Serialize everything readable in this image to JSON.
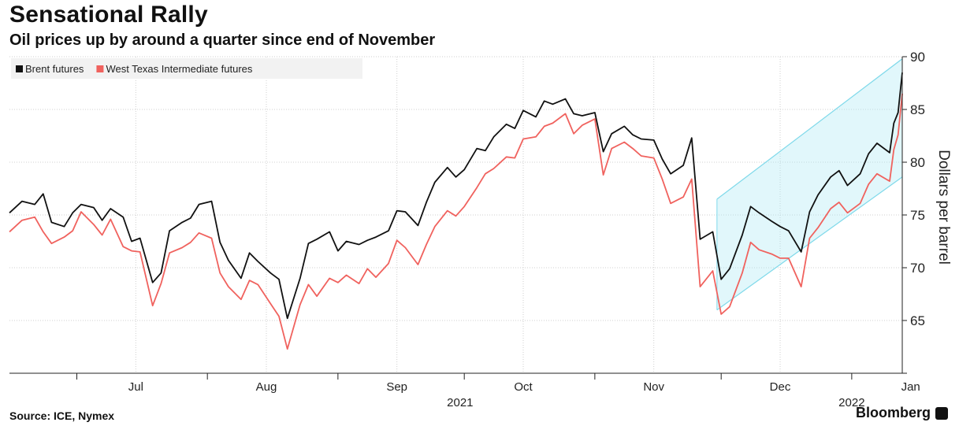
{
  "chart_data": {
    "type": "line",
    "title": "Sensational Rally",
    "subtitle": "Oil prices up by around a quarter since end of November",
    "ylabel": "Dollars per barrel",
    "ylim": [
      60,
      90
    ],
    "yticks": [
      65,
      70,
      75,
      80,
      85,
      90
    ],
    "xlim": [
      "2021-06-15",
      "2022-01-13"
    ],
    "month_ticks": [
      "2021-07-01",
      "2021-08-01",
      "2021-09-01",
      "2021-10-01",
      "2021-11-01",
      "2021-12-01",
      "2022-01-01"
    ],
    "month_labels": [
      "Jul",
      "Aug",
      "Sep",
      "Oct",
      "Nov",
      "Dec",
      "Jan"
    ],
    "year_labels": [
      {
        "text": "2021",
        "date": "2021-09-30"
      },
      {
        "text": "2022",
        "date": "2022-01-01"
      }
    ],
    "grid": true,
    "legend_position": "top-left",
    "series": [
      {
        "name": "Brent futures",
        "color": "#111111",
        "points": [
          [
            "2021-06-15",
            75.2
          ],
          [
            "2021-06-18",
            76.3
          ],
          [
            "2021-06-21",
            76.0
          ],
          [
            "2021-06-23",
            77.0
          ],
          [
            "2021-06-25",
            74.3
          ],
          [
            "2021-06-28",
            73.9
          ],
          [
            "2021-06-30",
            75.2
          ],
          [
            "2021-07-02",
            76.0
          ],
          [
            "2021-07-05",
            75.7
          ],
          [
            "2021-07-07",
            74.5
          ],
          [
            "2021-07-09",
            75.6
          ],
          [
            "2021-07-12",
            74.8
          ],
          [
            "2021-07-14",
            72.5
          ],
          [
            "2021-07-16",
            72.8
          ],
          [
            "2021-07-19",
            68.6
          ],
          [
            "2021-07-21",
            69.5
          ],
          [
            "2021-07-23",
            73.5
          ],
          [
            "2021-07-26",
            74.3
          ],
          [
            "2021-07-28",
            74.7
          ],
          [
            "2021-07-30",
            76.0
          ],
          [
            "2021-08-02",
            76.3
          ],
          [
            "2021-08-04",
            72.4
          ],
          [
            "2021-08-06",
            70.7
          ],
          [
            "2021-08-09",
            69.0
          ],
          [
            "2021-08-11",
            71.4
          ],
          [
            "2021-08-13",
            70.6
          ],
          [
            "2021-08-16",
            69.5
          ],
          [
            "2021-08-18",
            68.9
          ],
          [
            "2021-08-20",
            65.2
          ],
          [
            "2021-08-23",
            69.0
          ],
          [
            "2021-08-25",
            72.3
          ],
          [
            "2021-08-27",
            72.7
          ],
          [
            "2021-08-30",
            73.4
          ],
          [
            "2021-09-01",
            71.6
          ],
          [
            "2021-09-03",
            72.5
          ],
          [
            "2021-09-06",
            72.2
          ],
          [
            "2021-09-08",
            72.6
          ],
          [
            "2021-09-10",
            72.9
          ],
          [
            "2021-09-13",
            73.5
          ],
          [
            "2021-09-15",
            75.4
          ],
          [
            "2021-09-17",
            75.3
          ],
          [
            "2021-09-20",
            74.0
          ],
          [
            "2021-09-22",
            76.2
          ],
          [
            "2021-09-24",
            78.1
          ],
          [
            "2021-09-27",
            79.5
          ],
          [
            "2021-09-29",
            78.6
          ],
          [
            "2021-10-01",
            79.3
          ],
          [
            "2021-10-04",
            81.3
          ],
          [
            "2021-10-06",
            81.1
          ],
          [
            "2021-10-08",
            82.4
          ],
          [
            "2021-10-11",
            83.6
          ],
          [
            "2021-10-13",
            83.2
          ],
          [
            "2021-10-15",
            84.9
          ],
          [
            "2021-10-18",
            84.3
          ],
          [
            "2021-10-20",
            85.8
          ],
          [
            "2021-10-22",
            85.5
          ],
          [
            "2021-10-25",
            86.0
          ],
          [
            "2021-10-27",
            84.6
          ],
          [
            "2021-10-29",
            84.4
          ],
          [
            "2021-11-01",
            84.7
          ],
          [
            "2021-11-03",
            81.0
          ],
          [
            "2021-11-05",
            82.7
          ],
          [
            "2021-11-08",
            83.4
          ],
          [
            "2021-11-10",
            82.6
          ],
          [
            "2021-11-12",
            82.2
          ],
          [
            "2021-11-15",
            82.1
          ],
          [
            "2021-11-17",
            80.3
          ],
          [
            "2021-11-19",
            78.9
          ],
          [
            "2021-11-22",
            79.7
          ],
          [
            "2021-11-24",
            82.3
          ],
          [
            "2021-11-26",
            72.7
          ],
          [
            "2021-11-29",
            73.4
          ],
          [
            "2021-12-01",
            68.9
          ],
          [
            "2021-12-03",
            69.9
          ],
          [
            "2021-12-06",
            73.1
          ],
          [
            "2021-12-08",
            75.8
          ],
          [
            "2021-12-10",
            75.2
          ],
          [
            "2021-12-13",
            74.4
          ],
          [
            "2021-12-15",
            73.9
          ],
          [
            "2021-12-17",
            73.5
          ],
          [
            "2021-12-20",
            71.5
          ],
          [
            "2021-12-22",
            75.3
          ],
          [
            "2021-12-24",
            76.9
          ],
          [
            "2021-12-27",
            78.6
          ],
          [
            "2021-12-29",
            79.2
          ],
          [
            "2021-12-31",
            77.8
          ],
          [
            "2022-01-03",
            78.9
          ],
          [
            "2022-01-05",
            80.8
          ],
          [
            "2022-01-07",
            81.8
          ],
          [
            "2022-01-10",
            80.9
          ],
          [
            "2022-01-11",
            83.7
          ],
          [
            "2022-01-12",
            84.7
          ],
          [
            "2022-01-13",
            88.5
          ]
        ]
      },
      {
        "name": "West Texas Intermediate futures",
        "color": "#f0625e",
        "points": [
          [
            "2021-06-15",
            73.4
          ],
          [
            "2021-06-18",
            74.5
          ],
          [
            "2021-06-21",
            74.8
          ],
          [
            "2021-06-23",
            73.4
          ],
          [
            "2021-06-25",
            72.3
          ],
          [
            "2021-06-28",
            72.9
          ],
          [
            "2021-06-30",
            73.5
          ],
          [
            "2021-07-02",
            75.3
          ],
          [
            "2021-07-05",
            74.1
          ],
          [
            "2021-07-07",
            73.1
          ],
          [
            "2021-07-09",
            74.6
          ],
          [
            "2021-07-12",
            72.0
          ],
          [
            "2021-07-14",
            71.6
          ],
          [
            "2021-07-16",
            71.5
          ],
          [
            "2021-07-19",
            66.4
          ],
          [
            "2021-07-21",
            68.5
          ],
          [
            "2021-07-23",
            71.4
          ],
          [
            "2021-07-26",
            71.9
          ],
          [
            "2021-07-28",
            72.4
          ],
          [
            "2021-07-30",
            73.3
          ],
          [
            "2021-08-02",
            72.8
          ],
          [
            "2021-08-04",
            69.5
          ],
          [
            "2021-08-06",
            68.2
          ],
          [
            "2021-08-09",
            67.0
          ],
          [
            "2021-08-11",
            68.8
          ],
          [
            "2021-08-13",
            68.4
          ],
          [
            "2021-08-16",
            66.6
          ],
          [
            "2021-08-18",
            65.4
          ],
          [
            "2021-08-20",
            62.3
          ],
          [
            "2021-08-23",
            66.5
          ],
          [
            "2021-08-25",
            68.4
          ],
          [
            "2021-08-27",
            67.3
          ],
          [
            "2021-08-30",
            69.0
          ],
          [
            "2021-09-01",
            68.6
          ],
          [
            "2021-09-03",
            69.3
          ],
          [
            "2021-09-06",
            68.5
          ],
          [
            "2021-09-08",
            69.9
          ],
          [
            "2021-09-10",
            69.1
          ],
          [
            "2021-09-13",
            70.4
          ],
          [
            "2021-09-15",
            72.6
          ],
          [
            "2021-09-17",
            71.9
          ],
          [
            "2021-09-20",
            70.3
          ],
          [
            "2021-09-22",
            72.2
          ],
          [
            "2021-09-24",
            73.9
          ],
          [
            "2021-09-27",
            75.4
          ],
          [
            "2021-09-29",
            74.9
          ],
          [
            "2021-10-01",
            75.8
          ],
          [
            "2021-10-04",
            77.6
          ],
          [
            "2021-10-06",
            78.9
          ],
          [
            "2021-10-08",
            79.4
          ],
          [
            "2021-10-11",
            80.5
          ],
          [
            "2021-10-13",
            80.4
          ],
          [
            "2021-10-15",
            82.2
          ],
          [
            "2021-10-18",
            82.4
          ],
          [
            "2021-10-20",
            83.4
          ],
          [
            "2021-10-22",
            83.7
          ],
          [
            "2021-10-25",
            84.6
          ],
          [
            "2021-10-27",
            82.7
          ],
          [
            "2021-10-29",
            83.5
          ],
          [
            "2021-11-01",
            84.1
          ],
          [
            "2021-11-03",
            78.8
          ],
          [
            "2021-11-05",
            81.3
          ],
          [
            "2021-11-08",
            81.9
          ],
          [
            "2021-11-10",
            81.3
          ],
          [
            "2021-11-12",
            80.6
          ],
          [
            "2021-11-15",
            80.4
          ],
          [
            "2021-11-17",
            78.4
          ],
          [
            "2021-11-19",
            76.1
          ],
          [
            "2021-11-22",
            76.7
          ],
          [
            "2021-11-24",
            78.4
          ],
          [
            "2021-11-26",
            68.2
          ],
          [
            "2021-11-29",
            69.7
          ],
          [
            "2021-12-01",
            65.6
          ],
          [
            "2021-12-03",
            66.3
          ],
          [
            "2021-12-06",
            69.5
          ],
          [
            "2021-12-08",
            72.4
          ],
          [
            "2021-12-10",
            71.7
          ],
          [
            "2021-12-13",
            71.3
          ],
          [
            "2021-12-15",
            70.9
          ],
          [
            "2021-12-17",
            70.9
          ],
          [
            "2021-12-20",
            68.2
          ],
          [
            "2021-12-22",
            72.8
          ],
          [
            "2021-12-24",
            73.8
          ],
          [
            "2021-12-27",
            75.6
          ],
          [
            "2021-12-29",
            76.2
          ],
          [
            "2021-12-31",
            75.2
          ],
          [
            "2022-01-03",
            76.1
          ],
          [
            "2022-01-05",
            77.9
          ],
          [
            "2022-01-07",
            78.9
          ],
          [
            "2022-01-10",
            78.2
          ],
          [
            "2022-01-11",
            81.2
          ],
          [
            "2022-01-12",
            82.6
          ],
          [
            "2022-01-13",
            86.5
          ]
        ]
      }
    ],
    "channel": {
      "color": "#a9e9f3",
      "upper_start": [
        "2021-11-30",
        76.5
      ],
      "upper_end": [
        "2022-01-13",
        89.8
      ],
      "lower_start": [
        "2021-11-30",
        66.0
      ],
      "lower_end": [
        "2022-01-13",
        78.6
      ]
    }
  },
  "footer": {
    "source": "Source: ICE, Nymex",
    "brand": "Bloomberg"
  }
}
